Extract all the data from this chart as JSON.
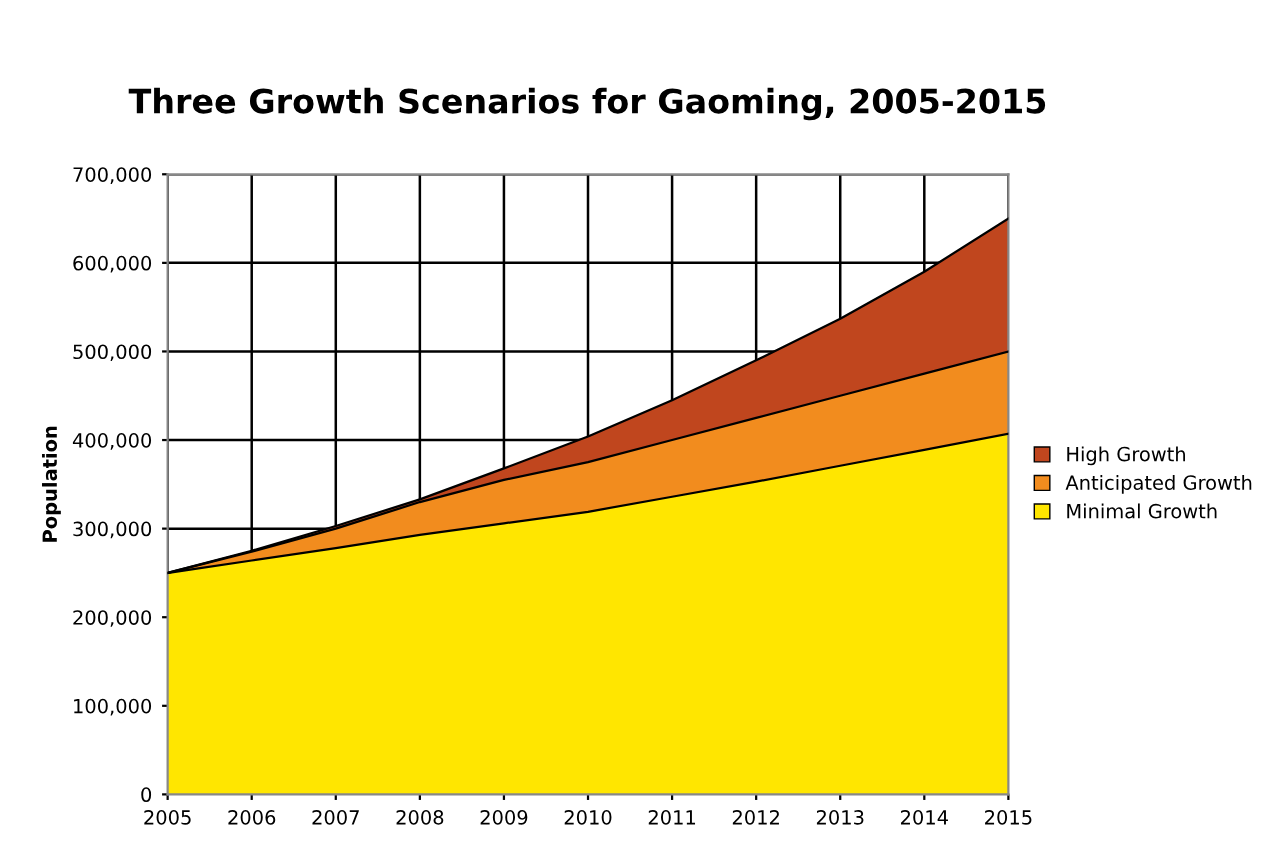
{
  "chart_data": {
    "type": "area",
    "title": "Three Growth Scenarios for Gaoming, 2005-2015",
    "ylabel": "Population",
    "stacked": true,
    "x": [
      2005,
      2006,
      2007,
      2008,
      2009,
      2010,
      2011,
      2012,
      2013,
      2014,
      2015
    ],
    "series": [
      {
        "name": "Minimal Growth",
        "color": "#ffe600",
        "values": [
          250000,
          264000,
          278000,
          293000,
          306000,
          319000,
          336000,
          353000,
          371000,
          389000,
          407000
        ]
      },
      {
        "name": "Anticipated Growth",
        "color": "#f28c1e",
        "values": [
          0,
          10000,
          22000,
          37000,
          49000,
          56000,
          64000,
          72000,
          79000,
          86000,
          93000
        ]
      },
      {
        "name": "High Growth",
        "color": "#c0461e",
        "values": [
          0,
          1000,
          3000,
          3000,
          13000,
          29000,
          45000,
          65000,
          87000,
          115000,
          150000
        ]
      }
    ],
    "xlim": [
      2005,
      2015
    ],
    "xticks": [
      2005,
      2006,
      2007,
      2008,
      2009,
      2010,
      2011,
      2012,
      2013,
      2014,
      2015
    ],
    "ylim": [
      0,
      700000
    ],
    "yticks": [
      0,
      {
        "value": 100000,
        "label": "100,000"
      },
      {
        "value": 200000,
        "label": "200,000"
      },
      {
        "value": 300000,
        "label": "300,000"
      },
      {
        "value": 400000,
        "label": "400,000"
      },
      {
        "value": 500000,
        "label": "500,000"
      },
      {
        "value": 600000,
        "label": "600,000"
      },
      {
        "value": 700000,
        "label": "700,000"
      }
    ],
    "grid": true,
    "legend": "right"
  }
}
